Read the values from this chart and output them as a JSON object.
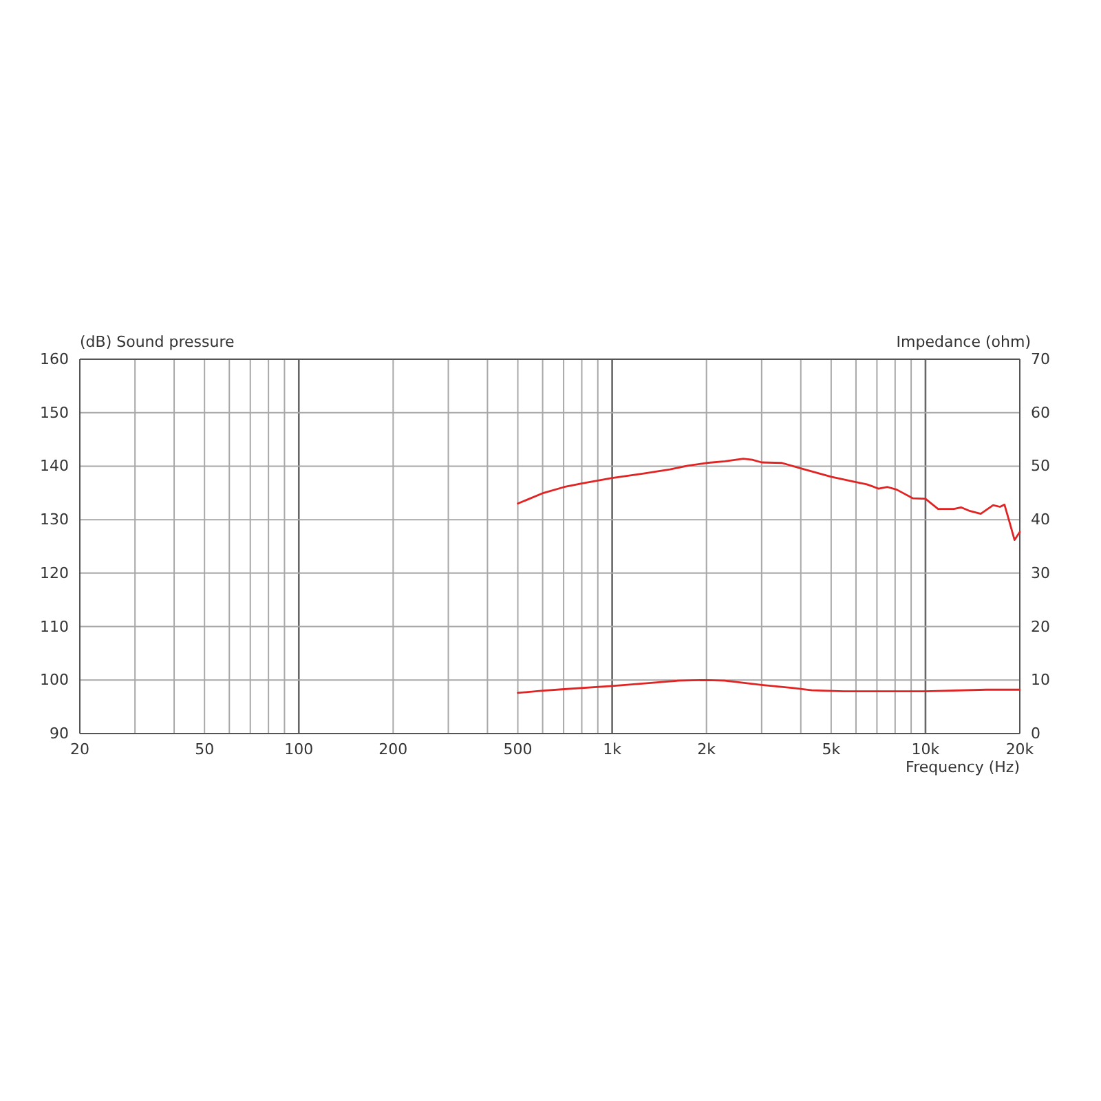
{
  "chart_data": {
    "type": "line",
    "ylabel": "(dB) Sound pressure",
    "y2label": "Impedance (ohm)",
    "xlabel": "Frequency (Hz)",
    "log": "x",
    "xlim": [
      20,
      20000
    ],
    "xticks": [
      20,
      {
        "value": 30,
        "label": null
      },
      {
        "value": 40,
        "label": null
      },
      50,
      {
        "value": 60,
        "label": null
      },
      {
        "value": 70,
        "label": null
      },
      {
        "value": 80,
        "label": null
      },
      {
        "value": 90,
        "label": null
      },
      100,
      200,
      {
        "value": 300,
        "label": null
      },
      {
        "value": 400,
        "label": null
      },
      500,
      {
        "value": 600,
        "label": null
      },
      {
        "value": 700,
        "label": null
      },
      {
        "value": 800,
        "label": null
      },
      {
        "value": 900,
        "label": null
      },
      {
        "value": 1000,
        "label": "1k"
      },
      {
        "value": 2000,
        "label": "2k"
      },
      {
        "value": 3000,
        "label": null
      },
      {
        "value": 4000,
        "label": null
      },
      {
        "value": 5000,
        "label": "5k"
      },
      {
        "value": 6000,
        "label": null
      },
      {
        "value": 7000,
        "label": null
      },
      {
        "value": 8000,
        "label": null
      },
      {
        "value": 9000,
        "label": null
      },
      {
        "value": 10000,
        "label": "10k"
      },
      {
        "value": 20000,
        "label": "20k"
      }
    ],
    "ylim": [
      90,
      160
    ],
    "yticks": [
      90,
      100,
      110,
      120,
      130,
      140,
      150,
      160
    ],
    "y2lim": [
      0,
      70
    ],
    "y2ticks": [
      0,
      10,
      20,
      30,
      40,
      50,
      60,
      70
    ],
    "grid": true,
    "series": [
      {
        "color": "#e02424",
        "x": [
          500,
          604,
          703,
          804,
          1000,
          1250,
          1530,
          1750,
          2000,
          2290,
          2620,
          2800,
          3000,
          3480,
          4000,
          5000,
          6000,
          6500,
          7080,
          7570,
          8100,
          9100,
          10000,
          10970,
          12330,
          12980,
          13880,
          15010,
          16440,
          17290,
          17870,
          18490,
          19240,
          20000
        ],
        "values": [
          133.0,
          135.0,
          136.1,
          136.8,
          137.8,
          138.6,
          139.4,
          140.1,
          140.6,
          140.9,
          141.4,
          141.2,
          140.7,
          140.6,
          139.6,
          138.0,
          137.0,
          136.6,
          135.8,
          136.1,
          135.6,
          134.0,
          133.9,
          132.0,
          132.0,
          132.3,
          131.6,
          131.1,
          132.7,
          132.4,
          132.8,
          129.8,
          126.2,
          127.7
        ]
      },
      {
        "color": "#e02424",
        "axis": "y2",
        "x": [
          500,
          594,
          703,
          1000,
          1290,
          1630,
          2000,
          2290,
          3000,
          3790,
          4340,
          5490,
          10000,
          15630,
          20000
        ],
        "values": [
          7.6,
          8.0,
          8.3,
          8.9,
          9.4,
          9.9,
          10.0,
          9.9,
          9.1,
          8.5,
          8.1,
          7.9,
          7.9,
          8.2,
          8.2
        ]
      }
    ]
  }
}
